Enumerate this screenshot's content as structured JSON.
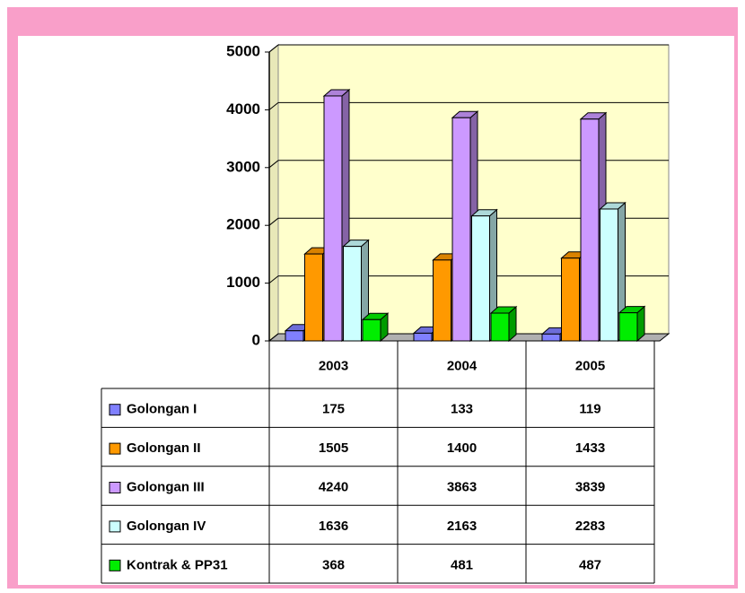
{
  "chart_data": {
    "type": "bar3d",
    "categories": [
      "2003",
      "2004",
      "2005"
    ],
    "series": [
      {
        "name": "Golongan I",
        "color": "#8080ff",
        "values": [
          175,
          133,
          119
        ]
      },
      {
        "name": "Golongan II",
        "color": "#ff9900",
        "values": [
          1505,
          1400,
          1433
        ]
      },
      {
        "name": "Golongan III",
        "color": "#cc99ff",
        "values": [
          4240,
          3863,
          3839
        ]
      },
      {
        "name": "Golongan IV",
        "color": "#ccffff",
        "values": [
          1636,
          2163,
          2283
        ]
      },
      {
        "name": "Kontrak & PP31",
        "color": "#00ee00",
        "values": [
          368,
          481,
          487
        ]
      }
    ],
    "ylim": [
      0,
      5000
    ],
    "yticks": [
      0,
      1000,
      2000,
      3000,
      4000,
      5000
    ],
    "grid": true,
    "data_table": true
  }
}
